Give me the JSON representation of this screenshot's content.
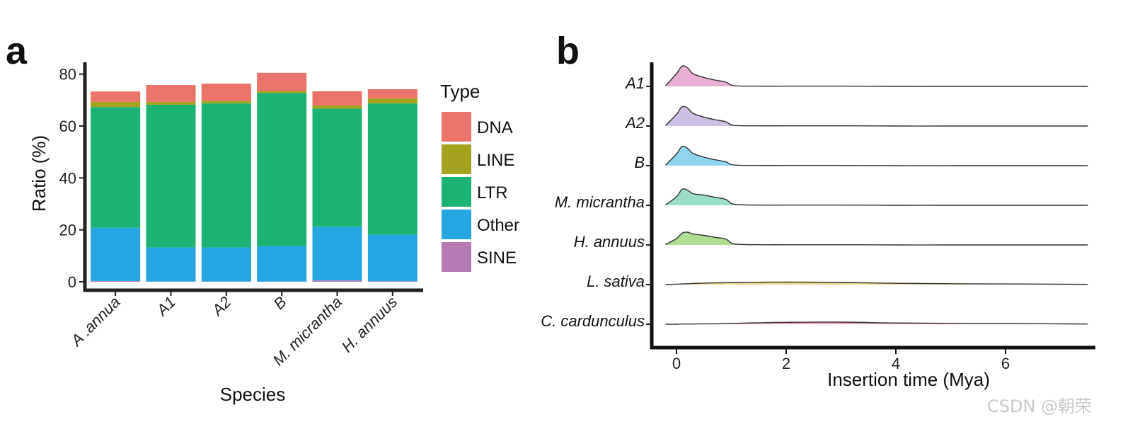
{
  "watermark": "CSDN @朝荣",
  "chart_data": [
    {
      "panel": "a",
      "type": "bar",
      "stacked": true,
      "xlabel": "Species",
      "ylabel": "Ratio (%)",
      "ylim": [
        0,
        85
      ],
      "yticks": [
        0,
        20,
        40,
        60,
        80
      ],
      "categories": [
        "A .annua",
        "A1",
        "A2",
        "B",
        "M. micrantha",
        "H. annuus"
      ],
      "legend": {
        "title": "Type",
        "position": "right"
      },
      "series": [
        {
          "name": "SINE",
          "color": "#B57AB4",
          "values": [
            0.3,
            0.1,
            0.1,
            0.1,
            0.5,
            0.2
          ]
        },
        {
          "name": "Other",
          "color": "#26A5E0",
          "values": [
            20.5,
            13.1,
            13.1,
            13.6,
            20.7,
            18.0
          ]
        },
        {
          "name": "LTR",
          "color": "#1BB274",
          "values": [
            46.5,
            55.0,
            55.5,
            59.0,
            45.5,
            50.5
          ]
        },
        {
          "name": "LINE",
          "color": "#A3A31F",
          "values": [
            2.0,
            1.1,
            1.0,
            0.8,
            1.2,
            2.0
          ]
        },
        {
          "name": "DNA",
          "color": "#EB746A",
          "values": [
            4.0,
            6.5,
            6.6,
            7.0,
            5.5,
            3.5
          ]
        }
      ],
      "legend_order": [
        "DNA",
        "LINE",
        "LTR",
        "Other",
        "SINE"
      ]
    },
    {
      "panel": "b",
      "type": "area",
      "subtype": "ridgeline density",
      "xlabel": "Insertion time (Mya)",
      "xlim": [
        -0.4,
        7.6
      ],
      "xticks": [
        0,
        2,
        4,
        6
      ],
      "density_x": [
        -0.2,
        0.0,
        0.1,
        0.2,
        0.3,
        0.5,
        0.7,
        0.9,
        1.05,
        1.5,
        2.0,
        3.0,
        4.0,
        5.0,
        6.0,
        7.5
      ],
      "series": [
        {
          "name": "A1",
          "color": "#E4A7CE",
          "heights": [
            0.02,
            0.6,
            0.95,
            0.88,
            0.6,
            0.42,
            0.3,
            0.2,
            0.03,
            0.01,
            0.01,
            0.01,
            0.0,
            0.0,
            0.0,
            0.0
          ]
        },
        {
          "name": "A2",
          "color": "#C7B9E0",
          "heights": [
            0.02,
            0.55,
            0.9,
            0.85,
            0.6,
            0.42,
            0.3,
            0.2,
            0.03,
            0.01,
            0.01,
            0.01,
            0.0,
            0.0,
            0.0,
            0.0
          ]
        },
        {
          "name": "B",
          "color": "#84CFEB",
          "heights": [
            0.02,
            0.55,
            0.9,
            0.82,
            0.58,
            0.4,
            0.28,
            0.18,
            0.03,
            0.01,
            0.01,
            0.01,
            0.0,
            0.0,
            0.0,
            0.0
          ]
        },
        {
          "name": "M. micrantha",
          "color": "#90D9C0",
          "heights": [
            0.02,
            0.4,
            0.75,
            0.72,
            0.55,
            0.48,
            0.38,
            0.28,
            0.05,
            0.01,
            0.01,
            0.01,
            0.0,
            0.0,
            0.0,
            0.0
          ]
        },
        {
          "name": "H. annuus",
          "color": "#A9D98A",
          "heights": [
            0.02,
            0.3,
            0.55,
            0.6,
            0.52,
            0.45,
            0.36,
            0.28,
            0.05,
            0.01,
            0.01,
            0.01,
            0.0,
            0.0,
            0.0,
            0.0
          ]
        },
        {
          "name": "L. sativa",
          "color": "#E8D27C",
          "heights": [
            0.0,
            0.02,
            0.03,
            0.04,
            0.05,
            0.07,
            0.08,
            0.09,
            0.1,
            0.11,
            0.12,
            0.1,
            0.06,
            0.04,
            0.03,
            0.01
          ]
        },
        {
          "name": "C. cardunculus",
          "color": "#EE9CB0",
          "heights": [
            0.0,
            0.0,
            0.01,
            0.01,
            0.01,
            0.02,
            0.02,
            0.03,
            0.04,
            0.07,
            0.09,
            0.1,
            0.06,
            0.04,
            0.03,
            0.01
          ]
        }
      ]
    }
  ]
}
